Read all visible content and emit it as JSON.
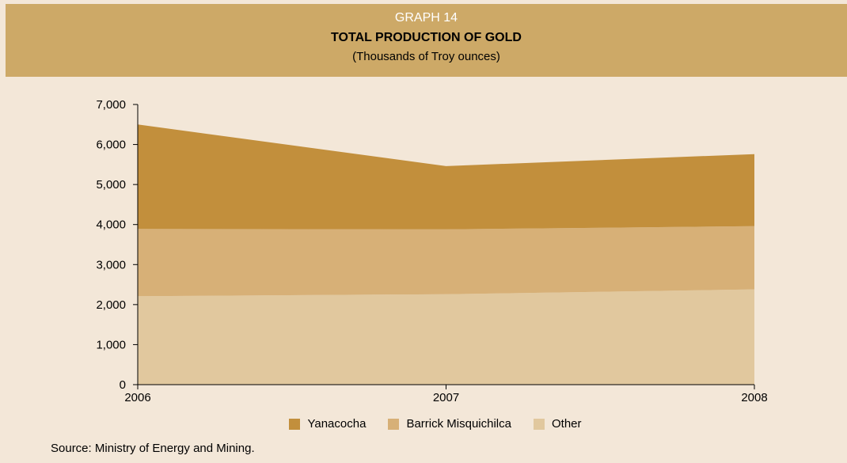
{
  "header": {
    "label": "GRAPH 14",
    "title": "TOTAL PRODUCTION OF GOLD",
    "subtitle": "(Thousands of Troy ounces)"
  },
  "chart_data": {
    "type": "area",
    "stacked": true,
    "x": [
      "2006",
      "2007",
      "2008"
    ],
    "ylim": [
      0,
      7000
    ],
    "yticks": [
      "0",
      "1,000",
      "2,000",
      "3,000",
      "4,000",
      "5,000",
      "6,000",
      "7,000"
    ],
    "grid": false,
    "legend_position": "bottom",
    "series": [
      {
        "name": "Other",
        "values": [
          2210,
          2260,
          2380
        ],
        "color": "#e1c89e"
      },
      {
        "name": "Barrick Misquichilca",
        "values": [
          1680,
          1620,
          1580
        ],
        "color": "#d7b077"
      },
      {
        "name": "Yanacocha",
        "values": [
          2610,
          1580,
          1800
        ],
        "color": "#c28f3c"
      }
    ],
    "legend_order": [
      "Yanacocha",
      "Barrick Misquichilca",
      "Other"
    ]
  },
  "source": "Source: Ministry of Energy and Mining."
}
